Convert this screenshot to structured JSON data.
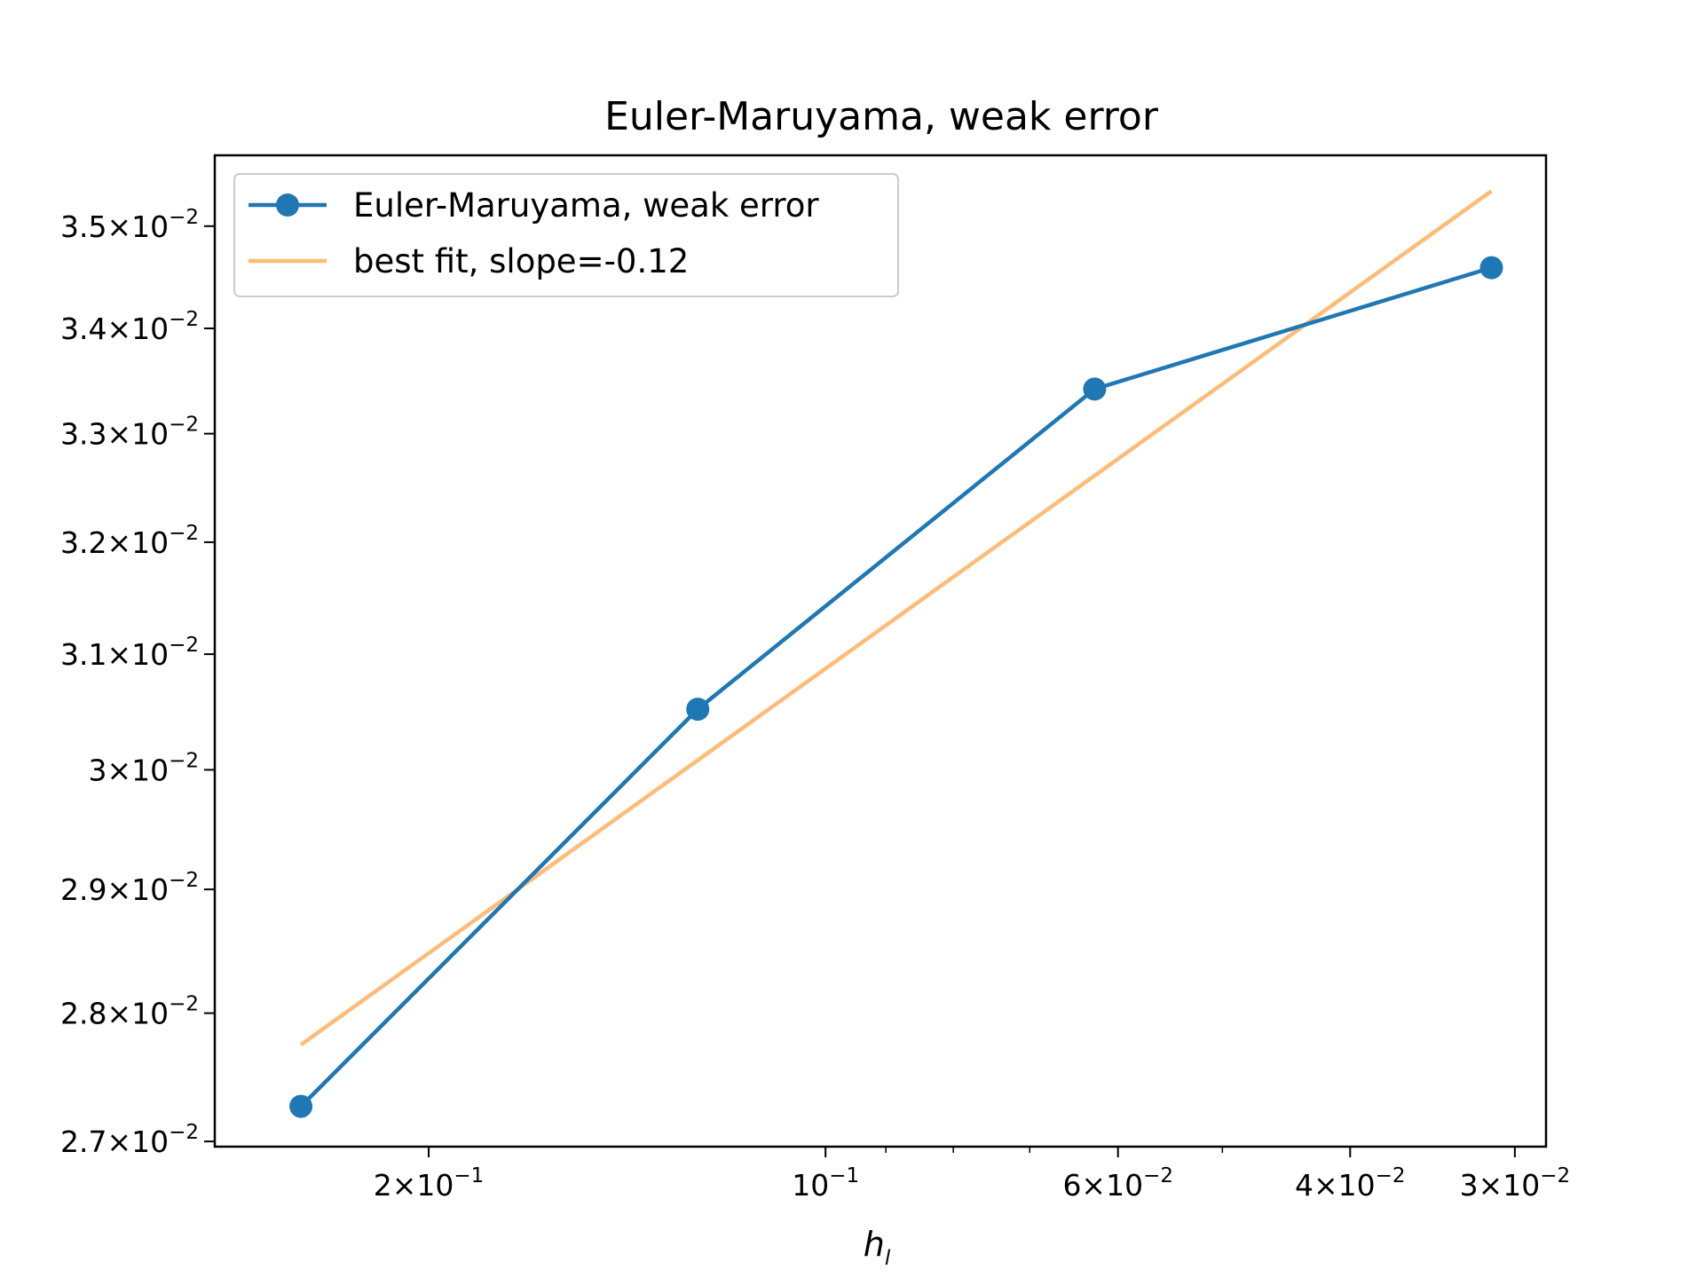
{
  "chart_data": {
    "type": "line",
    "title": "Euler-Maruyama, weak error",
    "xlabel": "h",
    "xlabel_sub": "l",
    "ylabel": "",
    "x_scale": "log",
    "y_scale": "log",
    "x_inverted": true,
    "xlim": [
      0.2906,
      0.02841
    ],
    "ylim": [
      0.02696,
      0.03571
    ],
    "x_ticks": [
      {
        "value": 0.2,
        "mant": "2",
        "exp": "−1"
      },
      {
        "value": 0.1,
        "mant": "",
        "exp": "−1"
      },
      {
        "value": 0.06,
        "mant": "6",
        "exp": "−2"
      },
      {
        "value": 0.04,
        "mant": "4",
        "exp": "−2"
      },
      {
        "value": 0.03,
        "mant": "3",
        "exp": "−2"
      }
    ],
    "x_minor_ticks": [
      0.09,
      0.08,
      0.07,
      0.05
    ],
    "y_ticks": [
      {
        "value": 0.027,
        "mant": "2.7",
        "exp": "−2"
      },
      {
        "value": 0.028,
        "mant": "2.8",
        "exp": "−2"
      },
      {
        "value": 0.029,
        "mant": "2.9",
        "exp": "−2"
      },
      {
        "value": 0.03,
        "mant": "3",
        "exp": "−2"
      },
      {
        "value": 0.031,
        "mant": "3.1",
        "exp": "−2"
      },
      {
        "value": 0.032,
        "mant": "3.2",
        "exp": "−2"
      },
      {
        "value": 0.033,
        "mant": "3.3",
        "exp": "−2"
      },
      {
        "value": 0.034,
        "mant": "3.4",
        "exp": "−2"
      },
      {
        "value": 0.035,
        "mant": "3.5",
        "exp": "−2"
      }
    ],
    "tick_base": "10",
    "times_sign": "×",
    "grid": false,
    "legend_position": "top-left",
    "series": [
      {
        "name": "Euler-Maruyama, weak error",
        "color": "#1f77b4",
        "marker": "circle",
        "x": [
          0.25,
          0.125,
          0.0625,
          0.03125
        ],
        "y": [
          0.02727,
          0.03052,
          0.03342,
          0.03459
        ]
      },
      {
        "name": "best fit, slope=-0.12",
        "color": "#ffbb78",
        "marker": "none",
        "x": [
          0.25,
          0.03125
        ],
        "y": [
          0.02775,
          0.03535
        ]
      }
    ]
  }
}
